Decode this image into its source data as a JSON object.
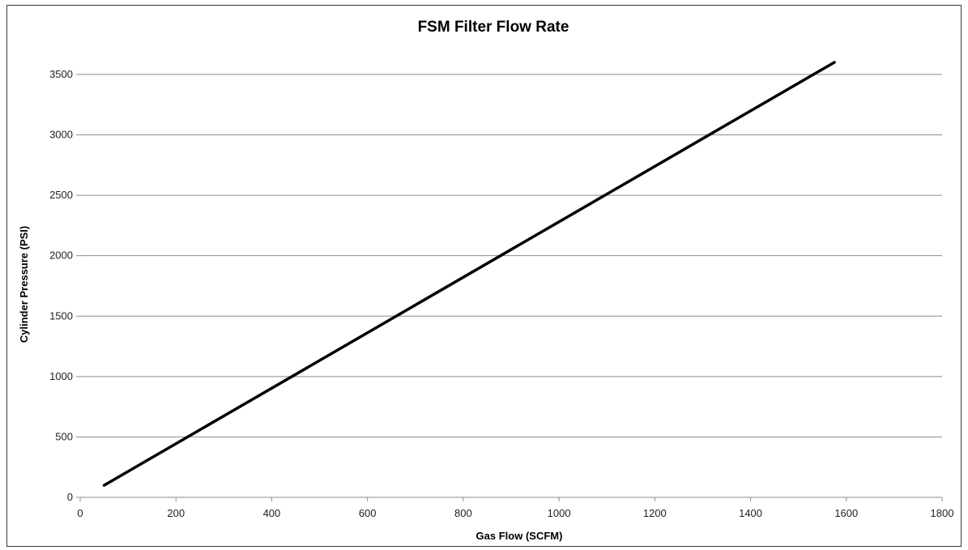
{
  "chart_data": {
    "type": "line",
    "title": "FSM Filter Flow Rate",
    "xlabel": "Gas Flow  (SCFM)",
    "ylabel": "Cylinder Pressure (PSI)",
    "xlim": [
      0,
      1800
    ],
    "ylim": [
      0,
      3600
    ],
    "xticks": [
      0,
      200,
      400,
      600,
      800,
      1000,
      1200,
      1400,
      1600,
      1800
    ],
    "yticks": [
      0,
      500,
      1000,
      1500,
      2000,
      2500,
      3000,
      3500
    ],
    "grid": "horizontal",
    "legend": "none",
    "series": [
      {
        "color": "#000000",
        "x": [
          50,
          1575
        ],
        "y": [
          100,
          3600
        ]
      }
    ]
  }
}
